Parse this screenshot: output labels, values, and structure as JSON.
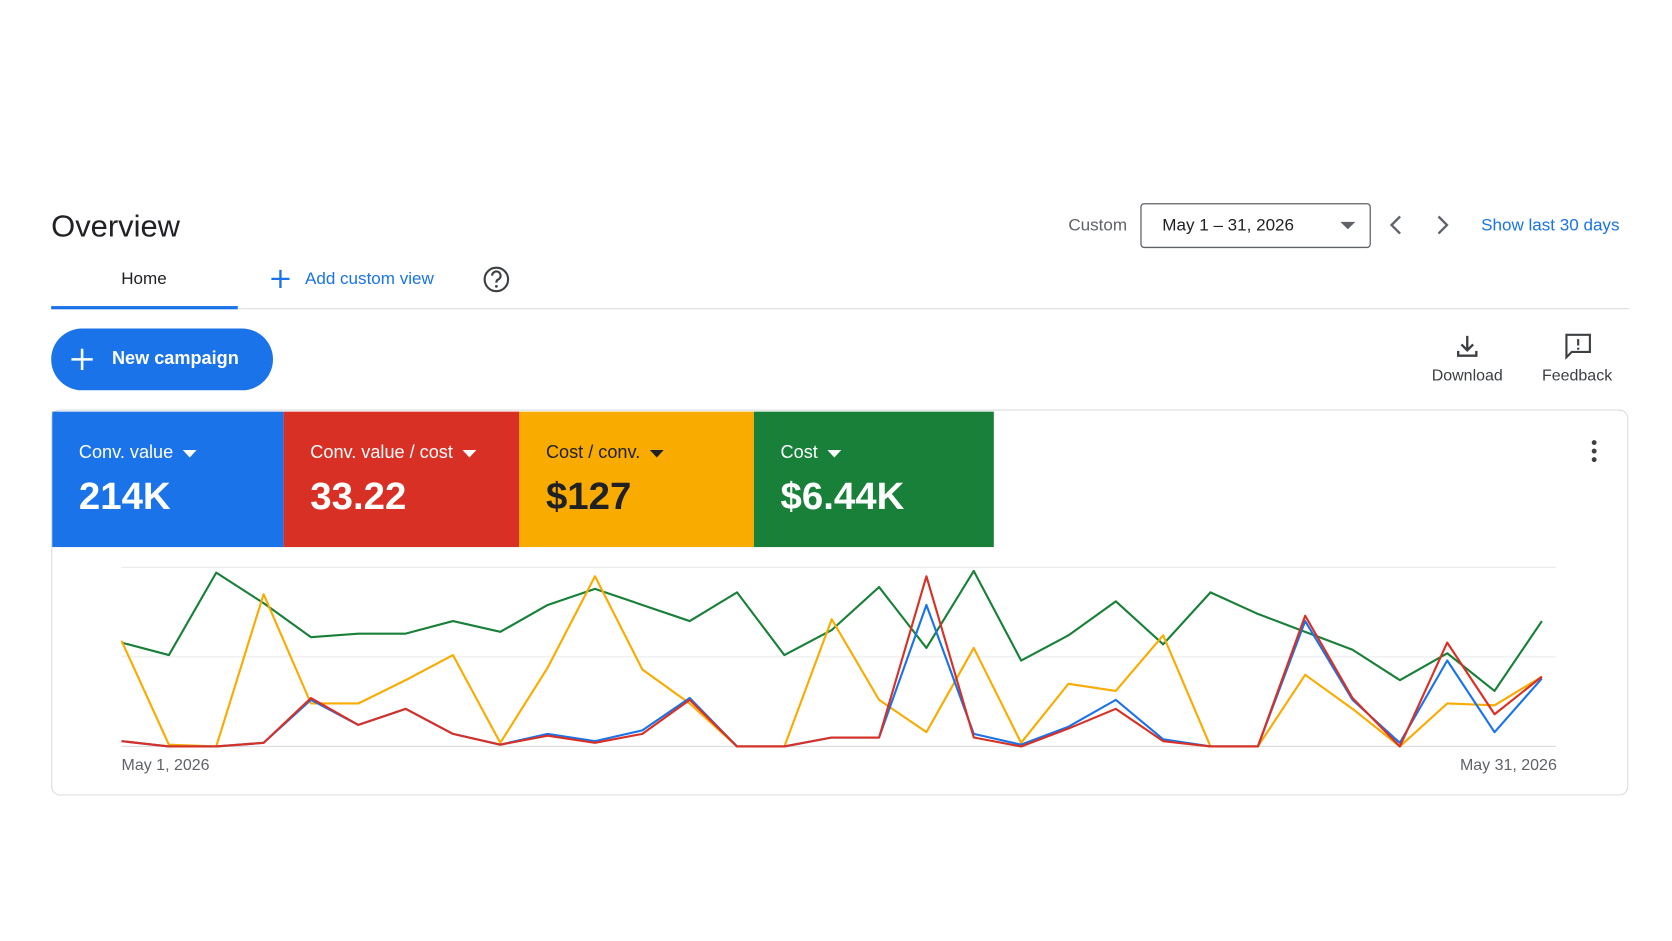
{
  "header": {
    "title": "Overview"
  },
  "date_range": {
    "label": "Custom",
    "value": "May 1 – 31, 2026",
    "shortcut": "Show last 30 days"
  },
  "tabs": {
    "home": "Home",
    "add_view": "Add custom view"
  },
  "actions": {
    "new_campaign": "New campaign",
    "download": "Download",
    "feedback": "Feedback"
  },
  "chart_data": {
    "type": "line",
    "categories": [
      "May 1, 2026",
      null,
      null,
      null,
      null,
      null,
      null,
      null,
      null,
      null,
      null,
      null,
      null,
      null,
      null,
      null,
      null,
      null,
      null,
      null,
      null,
      null,
      null,
      null,
      null,
      null,
      null,
      null,
      null,
      null,
      "May 31, 2026"
    ],
    "ylim": [
      0,
      100
    ],
    "grid_lines": [
      0,
      50,
      100
    ],
    "series": [
      {
        "name": "Conv. value",
        "summary": "214K",
        "color": "#1a73e8",
        "text_color": "#ffffff",
        "values": [
          3,
          0,
          0,
          2,
          26,
          12,
          21,
          7,
          1,
          7,
          3,
          9,
          27,
          0,
          0,
          5,
          5,
          79,
          7,
          1,
          11,
          26,
          4,
          0,
          0,
          70,
          26,
          2,
          48,
          8,
          38
        ]
      },
      {
        "name": "Conv. value / cost",
        "summary": "33.22",
        "color": "#d93025",
        "text_color": "#ffffff",
        "values": [
          3,
          0,
          0,
          2,
          27,
          12,
          21,
          7,
          1,
          6,
          2,
          7,
          26,
          0,
          0,
          5,
          5,
          95,
          5,
          0,
          10,
          21,
          3,
          0,
          0,
          73,
          27,
          0,
          58,
          18,
          39
        ]
      },
      {
        "name": "Cost / conv.",
        "summary": "$127",
        "color": "#f9ab00",
        "text_color": "#202124",
        "values": [
          59,
          1,
          0,
          85,
          24,
          24,
          37,
          51,
          2,
          44,
          95,
          43,
          24,
          0,
          0,
          71,
          26,
          8,
          55,
          2,
          35,
          31,
          62,
          0,
          0,
          40,
          21,
          0,
          24,
          23,
          39
        ]
      },
      {
        "name": "Cost",
        "summary": "$6.44K",
        "color": "#188038",
        "text_color": "#ffffff",
        "values": [
          58,
          51,
          97,
          80,
          61,
          63,
          63,
          70,
          64,
          79,
          88,
          79,
          70,
          86,
          51,
          65,
          89,
          55,
          98,
          48,
          62,
          81,
          57,
          86,
          74,
          64,
          54,
          37,
          52,
          31,
          70
        ]
      }
    ]
  }
}
